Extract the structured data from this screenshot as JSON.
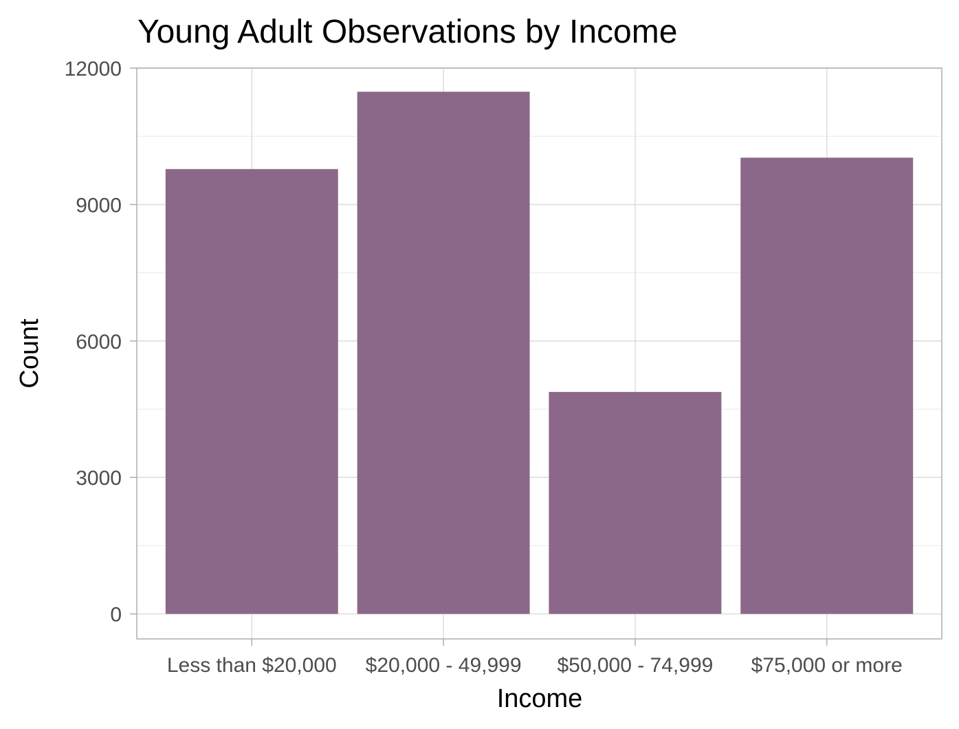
{
  "chart_data": {
    "type": "bar",
    "title": "Young Adult Observations by Income",
    "xlabel": "Income",
    "ylabel": "Count",
    "categories": [
      "Less than $20,000",
      "$20,000 - 49,999",
      "$50,000 - 74,999",
      "$75,000 or more"
    ],
    "values": [
      9780,
      11480,
      4880,
      10030
    ],
    "ylim": [
      -550,
      12000
    ],
    "yticks": [
      0,
      3000,
      6000,
      9000,
      12000
    ],
    "ytick_labels": [
      "0",
      "3000",
      "6000",
      "9000",
      "12000"
    ],
    "grid": true,
    "legend": "none",
    "bar_color": "#8b6889"
  }
}
